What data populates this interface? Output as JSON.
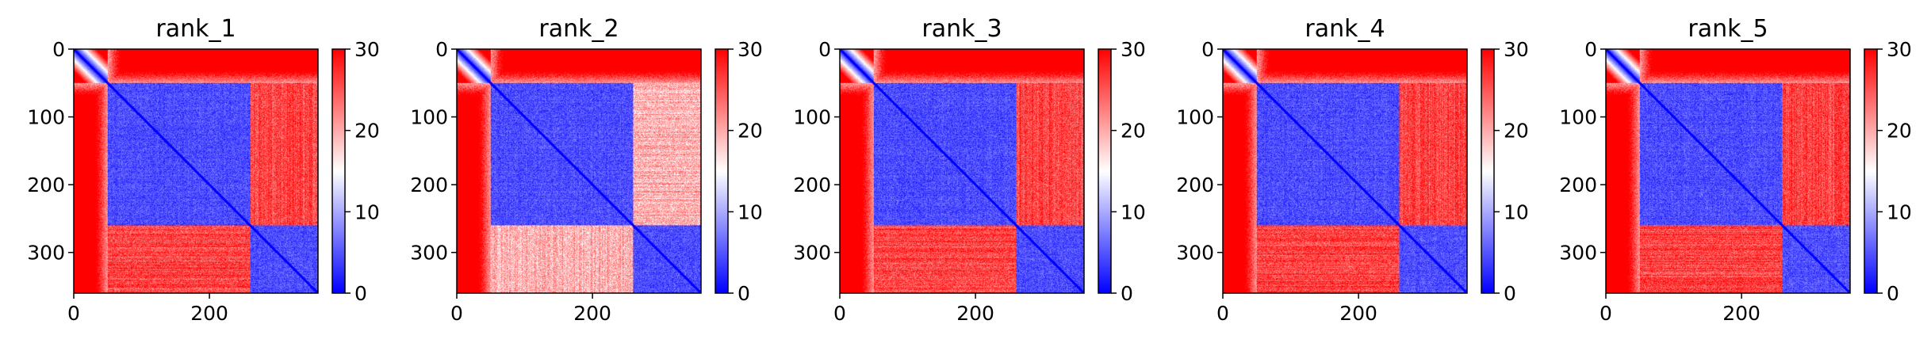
{
  "chart_data": [
    {
      "type": "heatmap",
      "title": "rank_1",
      "n": 360,
      "domains": [
        [
          0,
          50
        ],
        [
          50,
          260
        ],
        [
          260,
          360
        ]
      ],
      "interdomain_light": [],
      "xlim": [
        0,
        360
      ],
      "ylim": [
        360,
        0
      ],
      "x_ticks": [
        0,
        200
      ],
      "y_ticks": [
        0,
        100,
        200,
        300
      ],
      "colorbar": {
        "min": 0,
        "max": 30,
        "ticks": [
          0,
          10,
          20,
          30
        ],
        "colors": [
          "#0000ff",
          "#ffffff",
          "#ff0000"
        ]
      }
    },
    {
      "type": "heatmap",
      "title": "rank_2",
      "n": 360,
      "domains": [
        [
          0,
          50
        ],
        [
          50,
          260
        ],
        [
          260,
          360
        ]
      ],
      "interdomain_light": [
        [
          1,
          2
        ]
      ],
      "xlim": [
        0,
        360
      ],
      "ylim": [
        360,
        0
      ],
      "x_ticks": [
        0,
        200
      ],
      "y_ticks": [
        0,
        100,
        200,
        300
      ],
      "colorbar": {
        "min": 0,
        "max": 30,
        "ticks": [
          0,
          10,
          20,
          30
        ],
        "colors": [
          "#0000ff",
          "#ffffff",
          "#ff0000"
        ]
      }
    },
    {
      "type": "heatmap",
      "title": "rank_3",
      "n": 360,
      "domains": [
        [
          0,
          50
        ],
        [
          50,
          260
        ],
        [
          260,
          360
        ]
      ],
      "interdomain_light": [],
      "xlim": [
        0,
        360
      ],
      "ylim": [
        360,
        0
      ],
      "x_ticks": [
        0,
        200
      ],
      "y_ticks": [
        0,
        100,
        200,
        300
      ],
      "colorbar": {
        "min": 0,
        "max": 30,
        "ticks": [
          0,
          10,
          20,
          30
        ],
        "colors": [
          "#0000ff",
          "#ffffff",
          "#ff0000"
        ]
      }
    },
    {
      "type": "heatmap",
      "title": "rank_4",
      "n": 360,
      "domains": [
        [
          0,
          50
        ],
        [
          50,
          260
        ],
        [
          260,
          360
        ]
      ],
      "interdomain_light": [],
      "xlim": [
        0,
        360
      ],
      "ylim": [
        360,
        0
      ],
      "x_ticks": [
        0,
        200
      ],
      "y_ticks": [
        0,
        100,
        200,
        300
      ],
      "colorbar": {
        "min": 0,
        "max": 30,
        "ticks": [
          0,
          10,
          20,
          30
        ],
        "colors": [
          "#0000ff",
          "#ffffff",
          "#ff0000"
        ]
      }
    },
    {
      "type": "heatmap",
      "title": "rank_5",
      "n": 360,
      "domains": [
        [
          0,
          50
        ],
        [
          50,
          260
        ],
        [
          260,
          360
        ]
      ],
      "interdomain_light": [],
      "xlim": [
        0,
        360
      ],
      "ylim": [
        360,
        0
      ],
      "x_ticks": [
        0,
        200
      ],
      "y_ticks": [
        0,
        100,
        200,
        300
      ],
      "colorbar": {
        "min": 0,
        "max": 30,
        "ticks": [
          0,
          10,
          20,
          30
        ],
        "colors": [
          "#0000ff",
          "#ffffff",
          "#ff0000"
        ]
      }
    }
  ]
}
